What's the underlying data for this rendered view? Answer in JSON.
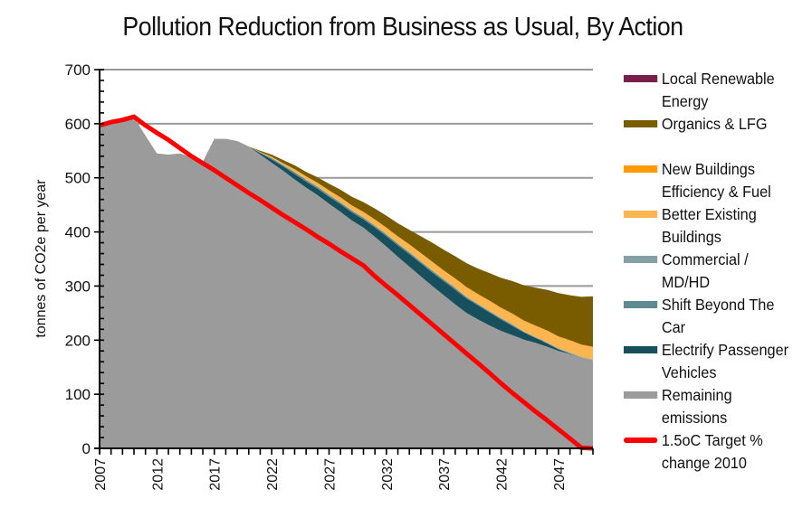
{
  "chart_data": {
    "type": "area",
    "stacked": true,
    "title": "Pollution Reduction from Business as Usual, By Action",
    "xlabel": "",
    "ylabel": "tonnes of CO2e per year",
    "xlim": [
      2007,
      2050
    ],
    "ylim": [
      0,
      700
    ],
    "yticks": [
      0,
      100,
      200,
      300,
      400,
      500,
      600,
      700
    ],
    "xticks": [
      2007,
      2012,
      2017,
      2022,
      2027,
      2032,
      2037,
      2042,
      2047
    ],
    "grid": "horizontal at 300, 600, 700",
    "legend_position": "right",
    "x": [
      2007,
      2008,
      2009,
      2010,
      2011,
      2012,
      2013,
      2014,
      2015,
      2016,
      2017,
      2018,
      2019,
      2020,
      2021,
      2022,
      2023,
      2024,
      2025,
      2026,
      2027,
      2028,
      2029,
      2030,
      2031,
      2032,
      2033,
      2034,
      2035,
      2036,
      2037,
      2038,
      2039,
      2040,
      2041,
      2042,
      2043,
      2044,
      2045,
      2046,
      2047,
      2048,
      2049,
      2050
    ],
    "series": [
      {
        "name": "Remaining emissions",
        "color": "#9b9b9b",
        "values": [
          597,
          603,
          607,
          612,
          578,
          545,
          543,
          545,
          538,
          530,
          572,
          572,
          568,
          558,
          543,
          528,
          513,
          497,
          482,
          468,
          452,
          437,
          421,
          408,
          391,
          373,
          354,
          336,
          318,
          300,
          283,
          266,
          250,
          238,
          227,
          217,
          209,
          201,
          195,
          188,
          180,
          174,
          168,
          163
        ]
      },
      {
        "name": "Electrify Passenger Vehicles",
        "color": "#174f5c",
        "values": [
          0,
          0,
          0,
          0,
          0,
          0,
          0,
          0,
          0,
          0,
          0,
          0,
          0,
          0,
          3,
          6,
          8,
          10,
          11,
          12,
          13,
          14,
          15,
          15,
          17,
          19,
          21,
          23,
          24,
          25,
          26,
          27,
          27,
          26,
          24,
          21,
          17,
          13,
          9,
          6,
          3,
          1,
          0,
          0
        ]
      },
      {
        "name": "Shift Beyond The Car",
        "color": "#5e8a92",
        "values": [
          0,
          0,
          0,
          0,
          0,
          0,
          0,
          0,
          0,
          0,
          0,
          0,
          0,
          0,
          1,
          2,
          2,
          3,
          3,
          3,
          3,
          3,
          3,
          3,
          3,
          3,
          3,
          3,
          3,
          3,
          3,
          3,
          2,
          2,
          2,
          2,
          2,
          1,
          1,
          1,
          1,
          1,
          0,
          0
        ]
      },
      {
        "name": "Commercial / MD/HD",
        "color": "#84a2a6",
        "values": [
          0,
          0,
          0,
          0,
          0,
          0,
          0,
          0,
          0,
          0,
          0,
          0,
          0,
          0,
          0,
          1,
          1,
          1,
          1,
          1,
          1,
          1,
          1,
          1,
          1,
          1,
          1,
          1,
          1,
          1,
          1,
          1,
          1,
          1,
          1,
          1,
          1,
          1,
          1,
          1,
          1,
          1,
          1,
          1
        ]
      },
      {
        "name": "Better Existing Buildings",
        "color": "#fdb64f",
        "values": [
          0,
          0,
          0,
          0,
          0,
          0,
          0,
          0,
          0,
          0,
          0,
          0,
          0,
          0,
          1,
          2,
          3,
          4,
          5,
          6,
          7,
          8,
          8,
          9,
          10,
          11,
          12,
          13,
          14,
          15,
          15,
          16,
          17,
          17,
          18,
          18,
          19,
          19,
          20,
          21,
          21,
          22,
          22,
          23
        ]
      },
      {
        "name": "New Buildings Efficiency & Fuel",
        "color": "#ff9a00",
        "values": [
          0,
          0,
          0,
          0,
          0,
          0,
          0,
          0,
          0,
          0,
          0,
          0,
          0,
          0,
          0,
          0,
          0,
          1,
          1,
          1,
          1,
          1,
          1,
          1,
          1,
          1,
          1,
          1,
          1,
          1,
          1,
          1,
          1,
          1,
          1,
          1,
          1,
          1,
          1,
          1,
          1,
          1,
          1,
          1
        ]
      },
      {
        "name": "Organics & LFG",
        "color": "#7a5c00",
        "values": [
          0,
          0,
          0,
          0,
          0,
          0,
          0,
          0,
          0,
          0,
          0,
          0,
          0,
          0,
          2,
          4,
          6,
          7,
          8,
          10,
          12,
          14,
          16,
          18,
          20,
          22,
          24,
          27,
          31,
          35,
          38,
          41,
          44,
          47,
          51,
          55,
          60,
          65,
          70,
          75,
          80,
          83,
          88,
          93
        ]
      },
      {
        "name": "Local Renewable Energy",
        "color": "#7a1f4b",
        "values": [
          0,
          0,
          0,
          0,
          0,
          0,
          0,
          0,
          0,
          0,
          0,
          0,
          0,
          0,
          0,
          0,
          0,
          0,
          0,
          0,
          0,
          0,
          0,
          0,
          0,
          0,
          0,
          0,
          0,
          0,
          0,
          0,
          0,
          0,
          0,
          0,
          0,
          0,
          0,
          0,
          0,
          0,
          0,
          0
        ]
      }
    ],
    "line_series": {
      "name": "1.5oC Target % change 2010",
      "color": "#ff0000",
      "values": [
        597,
        603,
        607,
        613,
        597,
        583,
        570,
        555,
        540,
        527,
        514,
        500,
        486,
        472,
        459,
        445,
        431,
        418,
        405,
        391,
        378,
        364,
        351,
        338,
        318,
        300,
        283,
        265,
        247,
        229,
        211,
        193,
        175,
        157,
        139,
        120,
        102,
        85,
        68,
        52,
        35,
        18,
        1,
        0
      ]
    }
  },
  "legend": {
    "items": [
      {
        "label": "Local Renewable\nEnergy",
        "color": "#7a1f4b",
        "kind": "area"
      },
      {
        "label": "Organics & LFG",
        "color": "#7a5c00",
        "kind": "area"
      },
      {
        "label": "New Buildings\nEfficiency & Fuel",
        "color": "#ff9a00",
        "kind": "area"
      },
      {
        "label": "Better Existing\nBuildings",
        "color": "#fdb64f",
        "kind": "area"
      },
      {
        "label": "Commercial /\nMD/HD",
        "color": "#84a2a6",
        "kind": "area"
      },
      {
        "label": "Shift Beyond The\nCar",
        "color": "#5e8a92",
        "kind": "area"
      },
      {
        "label": "Electrify Passenger\nVehicles",
        "color": "#174f5c",
        "kind": "area"
      },
      {
        "label": "Remaining\nemissions",
        "color": "#9b9b9b",
        "kind": "area"
      },
      {
        "label": "1.5oC Target %\nchange 2010",
        "color": "#ff0000",
        "kind": "line"
      }
    ]
  }
}
